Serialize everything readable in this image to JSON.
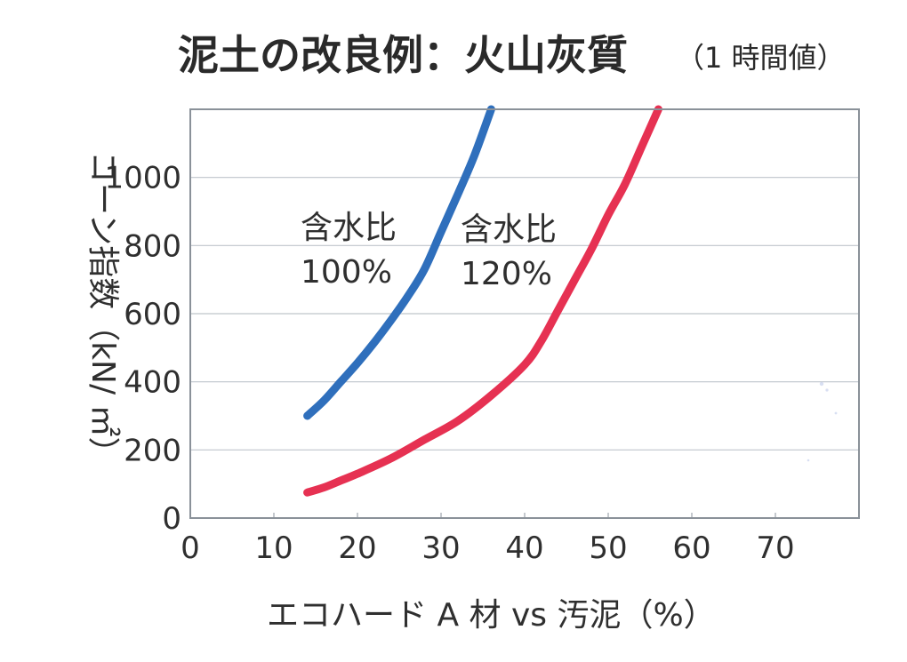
{
  "title": {
    "main": "泥土の改良例：火山灰質",
    "sub": "（1 時間値）"
  },
  "chart_data": {
    "type": "line",
    "xlabel": "エコハード A 材 vs 汚泥（%）",
    "ylabel": "コーン指数（kN/ ㎡）",
    "xlim": [
      0,
      80
    ],
    "ylim": [
      0,
      1200
    ],
    "xticks": [
      0,
      10,
      20,
      30,
      40,
      50,
      60,
      70
    ],
    "yticks": [
      0,
      200,
      400,
      600,
      800,
      1000
    ],
    "grid": "horizontal",
    "series": [
      {
        "name": "含水比 100%",
        "label_lines": [
          "含水比",
          "100%"
        ],
        "color": "#2f6fbc",
        "points": [
          [
            14,
            300
          ],
          [
            16,
            345
          ],
          [
            18,
            400
          ],
          [
            20,
            455
          ],
          [
            22,
            515
          ],
          [
            24,
            580
          ],
          [
            26,
            650
          ],
          [
            28,
            730
          ],
          [
            30,
            840
          ],
          [
            32,
            950
          ],
          [
            34,
            1065
          ],
          [
            36,
            1200
          ]
        ]
      },
      {
        "name": "含水比 120%",
        "label_lines": [
          "含水比",
          "120%"
        ],
        "color": "#e63152",
        "points": [
          [
            14,
            75
          ],
          [
            16,
            90
          ],
          [
            18,
            110
          ],
          [
            20,
            130
          ],
          [
            24,
            175
          ],
          [
            28,
            230
          ],
          [
            32,
            285
          ],
          [
            36,
            360
          ],
          [
            40,
            450
          ],
          [
            42,
            520
          ],
          [
            44,
            610
          ],
          [
            46,
            700
          ],
          [
            48,
            790
          ],
          [
            50,
            890
          ],
          [
            52,
            980
          ],
          [
            54,
            1090
          ],
          [
            56,
            1200
          ]
        ]
      }
    ]
  }
}
